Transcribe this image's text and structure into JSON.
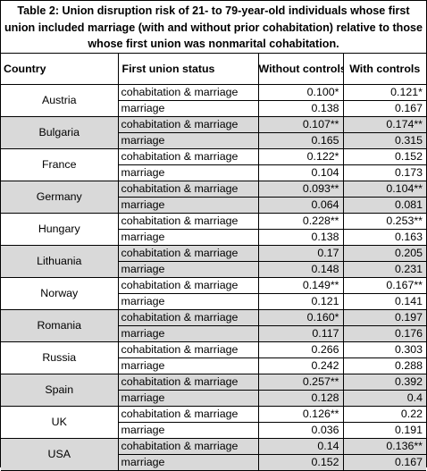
{
  "table": {
    "caption": "Table 2: Union disruption risk of 21- to 79-year-old individuals whose first union included marriage (with and without prior cohabitation) relative to those whose first union was nonmarital cohabitation.",
    "headers": {
      "country": "Country",
      "status": "First union status",
      "without_controls": "Without controls",
      "with_controls": "With controls"
    },
    "rows": [
      {
        "country": "Austria",
        "status": "cohabitation & marriage",
        "without": "0.100*",
        "with": "0.121*"
      },
      {
        "country": "Austria",
        "status": "marriage",
        "without": "0.138",
        "with": "0.167"
      },
      {
        "country": "Bulgaria",
        "status": "cohabitation & marriage",
        "without": "0.107**",
        "with": "0.174**"
      },
      {
        "country": "Bulgaria",
        "status": "marriage",
        "without": "0.165",
        "with": "0.315"
      },
      {
        "country": "France",
        "status": "cohabitation & marriage",
        "without": "0.122*",
        "with": "0.152"
      },
      {
        "country": "France",
        "status": "marriage",
        "without": "0.104",
        "with": "0.173"
      },
      {
        "country": "Germany",
        "status": "cohabitation & marriage",
        "without": "0.093**",
        "with": "0.104**"
      },
      {
        "country": "Germany",
        "status": "marriage",
        "without": "0.064",
        "with": "0.081"
      },
      {
        "country": "Hungary",
        "status": "cohabitation & marriage",
        "without": "0.228**",
        "with": "0.253**"
      },
      {
        "country": "Hungary",
        "status": "marriage",
        "without": "0.138",
        "with": "0.163"
      },
      {
        "country": "Lithuania",
        "status": "cohabitation & marriage",
        "without": "0.17",
        "with": "0.205"
      },
      {
        "country": "Lithuania",
        "status": "marriage",
        "without": "0.148",
        "with": "0.231"
      },
      {
        "country": "Norway",
        "status": "cohabitation & marriage",
        "without": "0.149**",
        "with": "0.167**"
      },
      {
        "country": "Norway",
        "status": "marriage",
        "without": "0.121",
        "with": "0.141"
      },
      {
        "country": "Romania",
        "status": "cohabitation & marriage",
        "without": "0.160*",
        "with": "0.197"
      },
      {
        "country": "Romania",
        "status": "marriage",
        "without": "0.117",
        "with": "0.176"
      },
      {
        "country": "Russia",
        "status": "cohabitation & marriage",
        "without": "0.266",
        "with": "0.303"
      },
      {
        "country": "Russia",
        "status": "marriage",
        "without": "0.242",
        "with": "0.288"
      },
      {
        "country": "Spain",
        "status": "cohabitation & marriage",
        "without": "0.257**",
        "with": "0.392"
      },
      {
        "country": "Spain",
        "status": "marriage",
        "without": "0.128",
        "with": "0.4"
      },
      {
        "country": "UK",
        "status": "cohabitation & marriage",
        "without": "0.126**",
        "with": "0.22"
      },
      {
        "country": "UK",
        "status": "marriage",
        "without": "0.036",
        "with": "0.191"
      },
      {
        "country": "USA",
        "status": "cohabitation & marriage",
        "without": "0.14",
        "with": "0.136**"
      },
      {
        "country": "USA",
        "status": "marriage",
        "without": "0.152",
        "with": "0.167"
      }
    ]
  },
  "colors": {
    "shade": "#d9d9d9",
    "white": "#ffffff",
    "border": "#000000"
  }
}
